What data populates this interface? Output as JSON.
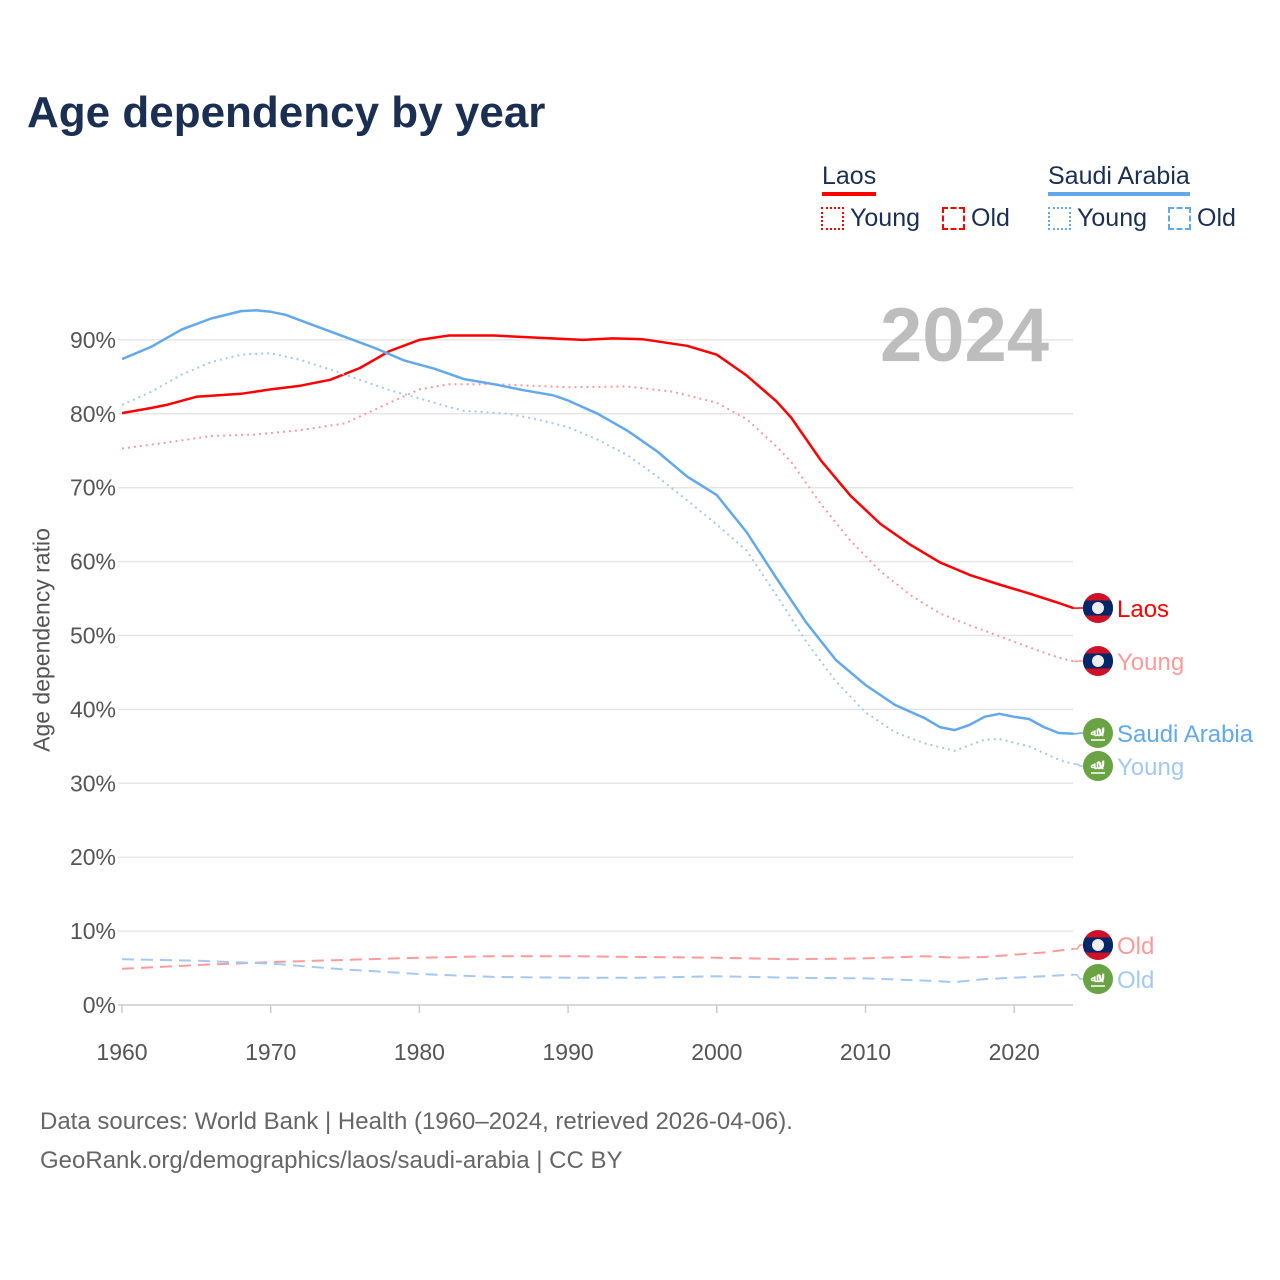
{
  "chart_data": {
    "type": "line",
    "title": "Age dependency by year",
    "ylabel": "Age dependency ratio",
    "xlabel": "",
    "year_label": "2024",
    "xlim": [
      1960,
      2024
    ],
    "ylim": [
      0,
      95
    ],
    "x_ticks": [
      "1960",
      "1970",
      "1980",
      "1990",
      "2000",
      "2010",
      "2020"
    ],
    "y_ticks": [
      "0%",
      "10%",
      "20%",
      "30%",
      "40%",
      "50%",
      "60%",
      "70%",
      "80%",
      "90%"
    ],
    "grid": true,
    "legend": {
      "placement": "top-right",
      "groups": [
        {
          "country": "Laos",
          "color": "#ff0000",
          "items": [
            "Young",
            "Old"
          ]
        },
        {
          "country": "Saudi Arabia",
          "color": "#62a8ea",
          "items": [
            "Young",
            "Old"
          ]
        }
      ]
    },
    "series": [
      {
        "name": "Laos",
        "label": "Laos",
        "style": "solid",
        "color": "#ff0000",
        "flag": "laos",
        "points": [
          [
            1960,
            80.1
          ],
          [
            1962,
            80.8
          ],
          [
            1963,
            81.2
          ],
          [
            1965,
            82.3
          ],
          [
            1968,
            82.7
          ],
          [
            1970,
            83.3
          ],
          [
            1972,
            83.8
          ],
          [
            1974,
            84.6
          ],
          [
            1976,
            86.2
          ],
          [
            1978,
            88.5
          ],
          [
            1980,
            90.0
          ],
          [
            1982,
            90.6
          ],
          [
            1985,
            90.6
          ],
          [
            1988,
            90.3
          ],
          [
            1991,
            90.0
          ],
          [
            1993,
            90.2
          ],
          [
            1995,
            90.1
          ],
          [
            1998,
            89.2
          ],
          [
            2000,
            88.0
          ],
          [
            2002,
            85.2
          ],
          [
            2004,
            81.7
          ],
          [
            2005,
            79.5
          ],
          [
            2007,
            73.7
          ],
          [
            2009,
            68.9
          ],
          [
            2011,
            65.1
          ],
          [
            2013,
            62.3
          ],
          [
            2015,
            59.9
          ],
          [
            2017,
            58.2
          ],
          [
            2019,
            56.9
          ],
          [
            2021,
            55.7
          ],
          [
            2023,
            54.4
          ],
          [
            2024,
            53.7
          ]
        ]
      },
      {
        "name": "Laos Young",
        "label": "Young",
        "style": "dotted",
        "color": "#ff9a9a",
        "flag": "laos",
        "points": [
          [
            1960,
            75.3
          ],
          [
            1963,
            76.1
          ],
          [
            1966,
            77.0
          ],
          [
            1969,
            77.2
          ],
          [
            1972,
            77.8
          ],
          [
            1975,
            78.7
          ],
          [
            1978,
            81.5
          ],
          [
            1980,
            83.3
          ],
          [
            1982,
            84.0
          ],
          [
            1985,
            84.0
          ],
          [
            1990,
            83.6
          ],
          [
            1994,
            83.7
          ],
          [
            1997,
            83.0
          ],
          [
            2000,
            81.5
          ],
          [
            2002,
            79.3
          ],
          [
            2004,
            75.6
          ],
          [
            2005,
            73.5
          ],
          [
            2007,
            67.8
          ],
          [
            2009,
            62.8
          ],
          [
            2011,
            58.7
          ],
          [
            2013,
            55.5
          ],
          [
            2015,
            53.0
          ],
          [
            2017,
            51.4
          ],
          [
            2019,
            49.9
          ],
          [
            2021,
            48.4
          ],
          [
            2023,
            47.0
          ],
          [
            2024,
            46.5
          ]
        ]
      },
      {
        "name": "Saudi Arabia",
        "label": "Saudi Arabia",
        "style": "solid",
        "color": "#62a8ea",
        "flag": "saudi",
        "points": [
          [
            1960,
            87.4
          ],
          [
            1962,
            89.1
          ],
          [
            1964,
            91.4
          ],
          [
            1966,
            92.9
          ],
          [
            1968,
            93.9
          ],
          [
            1969,
            94.0
          ],
          [
            1970,
            93.8
          ],
          [
            1971,
            93.4
          ],
          [
            1973,
            91.9
          ],
          [
            1975,
            90.4
          ],
          [
            1977,
            88.9
          ],
          [
            1979,
            87.2
          ],
          [
            1981,
            86.1
          ],
          [
            1983,
            84.7
          ],
          [
            1985,
            84.0
          ],
          [
            1987,
            83.2
          ],
          [
            1989,
            82.5
          ],
          [
            1990,
            81.8
          ],
          [
            1992,
            80.0
          ],
          [
            1994,
            77.7
          ],
          [
            1996,
            74.9
          ],
          [
            1998,
            71.5
          ],
          [
            2000,
            69.0
          ],
          [
            2002,
            64.0
          ],
          [
            2004,
            57.8
          ],
          [
            2006,
            51.8
          ],
          [
            2008,
            46.7
          ],
          [
            2010,
            43.3
          ],
          [
            2012,
            40.6
          ],
          [
            2014,
            38.8
          ],
          [
            2015,
            37.6
          ],
          [
            2016,
            37.2
          ],
          [
            2017,
            37.9
          ],
          [
            2018,
            39.0
          ],
          [
            2019,
            39.4
          ],
          [
            2020,
            39.0
          ],
          [
            2021,
            38.7
          ],
          [
            2022,
            37.6
          ],
          [
            2023,
            36.8
          ],
          [
            2024,
            36.7
          ]
        ]
      },
      {
        "name": "Saudi Arabia Young",
        "label": "Young",
        "style": "dotted",
        "color": "#a3c9f1",
        "flag": "saudi",
        "points": [
          [
            1960,
            81.2
          ],
          [
            1962,
            83.0
          ],
          [
            1964,
            85.3
          ],
          [
            1966,
            87.0
          ],
          [
            1968,
            88.0
          ],
          [
            1970,
            88.2
          ],
          [
            1972,
            87.3
          ],
          [
            1974,
            86.0
          ],
          [
            1976,
            84.6
          ],
          [
            1978,
            83.2
          ],
          [
            1980,
            82.1
          ],
          [
            1982,
            80.9
          ],
          [
            1983,
            80.4
          ],
          [
            1986,
            80.0
          ],
          [
            1988,
            79.2
          ],
          [
            1990,
            78.2
          ],
          [
            1992,
            76.5
          ],
          [
            1994,
            74.4
          ],
          [
            1996,
            71.5
          ],
          [
            1998,
            68.3
          ],
          [
            2000,
            65.0
          ],
          [
            2002,
            61.5
          ],
          [
            2004,
            55.5
          ],
          [
            2006,
            49.2
          ],
          [
            2008,
            43.8
          ],
          [
            2010,
            39.6
          ],
          [
            2012,
            36.9
          ],
          [
            2014,
            35.4
          ],
          [
            2016,
            34.4
          ],
          [
            2018,
            35.9
          ],
          [
            2019,
            36.0
          ],
          [
            2021,
            35.0
          ],
          [
            2023,
            33.2
          ],
          [
            2024,
            32.6
          ]
        ]
      },
      {
        "name": "Laos Old",
        "label": "Old",
        "style": "dashed",
        "color": "#ff9a9a",
        "flag": "laos",
        "points": [
          [
            1960,
            4.9
          ],
          [
            1965,
            5.4
          ],
          [
            1970,
            5.8
          ],
          [
            1975,
            6.1
          ],
          [
            1980,
            6.4
          ],
          [
            1985,
            6.6
          ],
          [
            1990,
            6.6
          ],
          [
            1995,
            6.5
          ],
          [
            2000,
            6.4
          ],
          [
            2005,
            6.2
          ],
          [
            2010,
            6.3
          ],
          [
            2014,
            6.6
          ],
          [
            2016,
            6.4
          ],
          [
            2018,
            6.5
          ],
          [
            2020,
            6.8
          ],
          [
            2022,
            7.1
          ],
          [
            2024,
            7.6
          ]
        ]
      },
      {
        "name": "Saudi Arabia Old",
        "label": "Old",
        "style": "dashed",
        "color": "#a3c9f1",
        "flag": "saudi",
        "points": [
          [
            1960,
            6.2
          ],
          [
            1965,
            6.0
          ],
          [
            1970,
            5.6
          ],
          [
            1975,
            4.8
          ],
          [
            1980,
            4.2
          ],
          [
            1985,
            3.8
          ],
          [
            1990,
            3.7
          ],
          [
            1995,
            3.7
          ],
          [
            2000,
            3.9
          ],
          [
            2005,
            3.7
          ],
          [
            2010,
            3.6
          ],
          [
            2014,
            3.3
          ],
          [
            2016,
            3.1
          ],
          [
            2018,
            3.5
          ],
          [
            2020,
            3.7
          ],
          [
            2022,
            3.9
          ],
          [
            2024,
            4.1
          ]
        ]
      }
    ]
  },
  "footer": {
    "source": "Data sources: World Bank | Health (1960–2024, retrieved 2026-04-06).",
    "url": "GeoRank.org/demographics/laos/saudi-arabia | CC BY"
  }
}
